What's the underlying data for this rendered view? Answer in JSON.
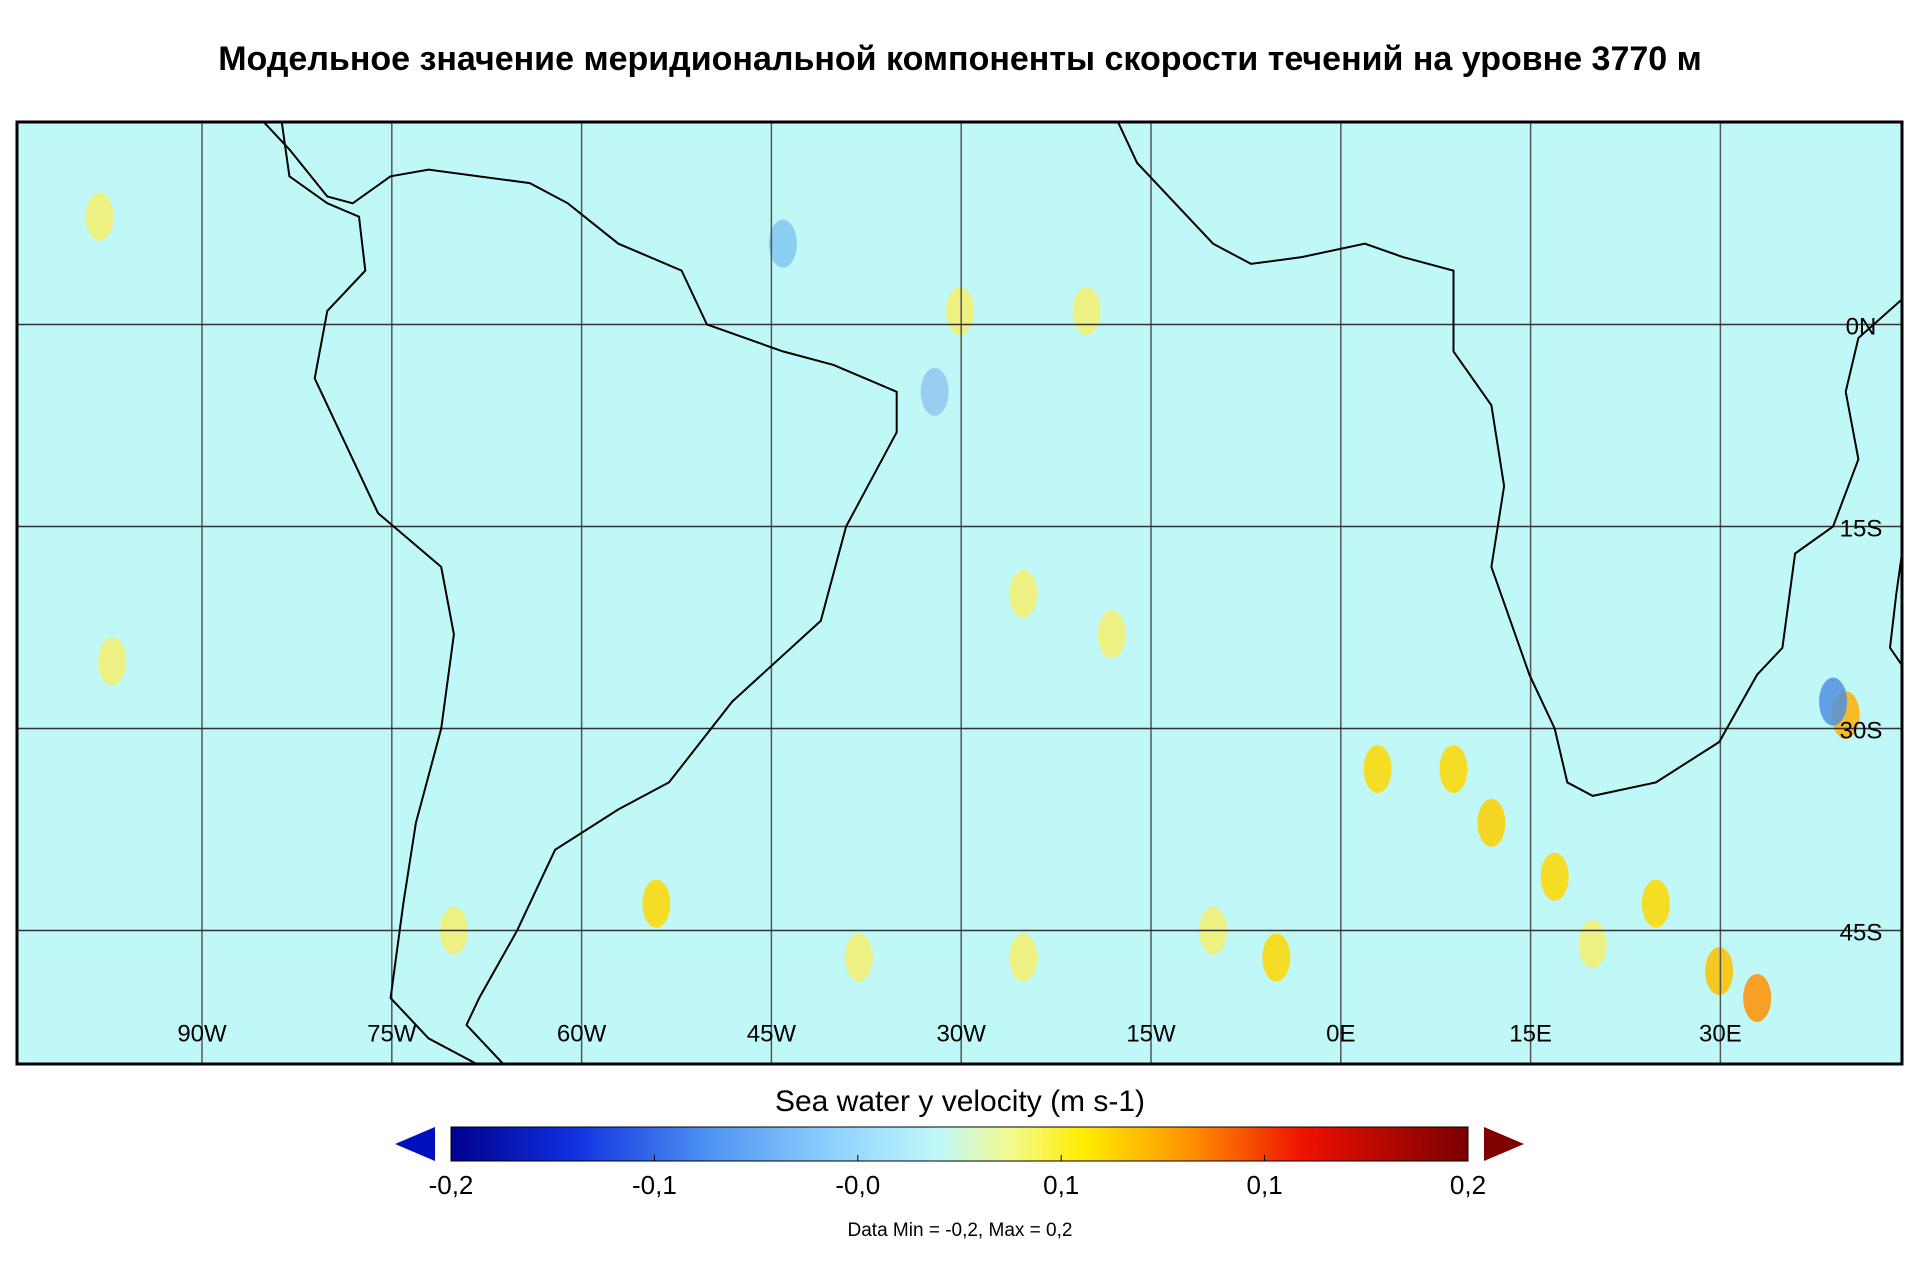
{
  "title": "Модельное значение меридиональной компоненты скорости течений на уровне 3770 м",
  "map": {
    "lon_labels": [
      "90W",
      "75W",
      "60W",
      "45W",
      "30W",
      "15W",
      "0E",
      "15E",
      "30E"
    ],
    "lat_labels": [
      "0N",
      "15S",
      "30S",
      "45S"
    ]
  },
  "colorbar": {
    "label": "Sea water y velocity (m s-1)",
    "tick_labels": [
      "-0,2",
      "-0,1",
      "-0,0",
      "0,1",
      "0,1",
      "0,2"
    ],
    "note": "Data Min = -0,2, Max = 0,2"
  }
}
